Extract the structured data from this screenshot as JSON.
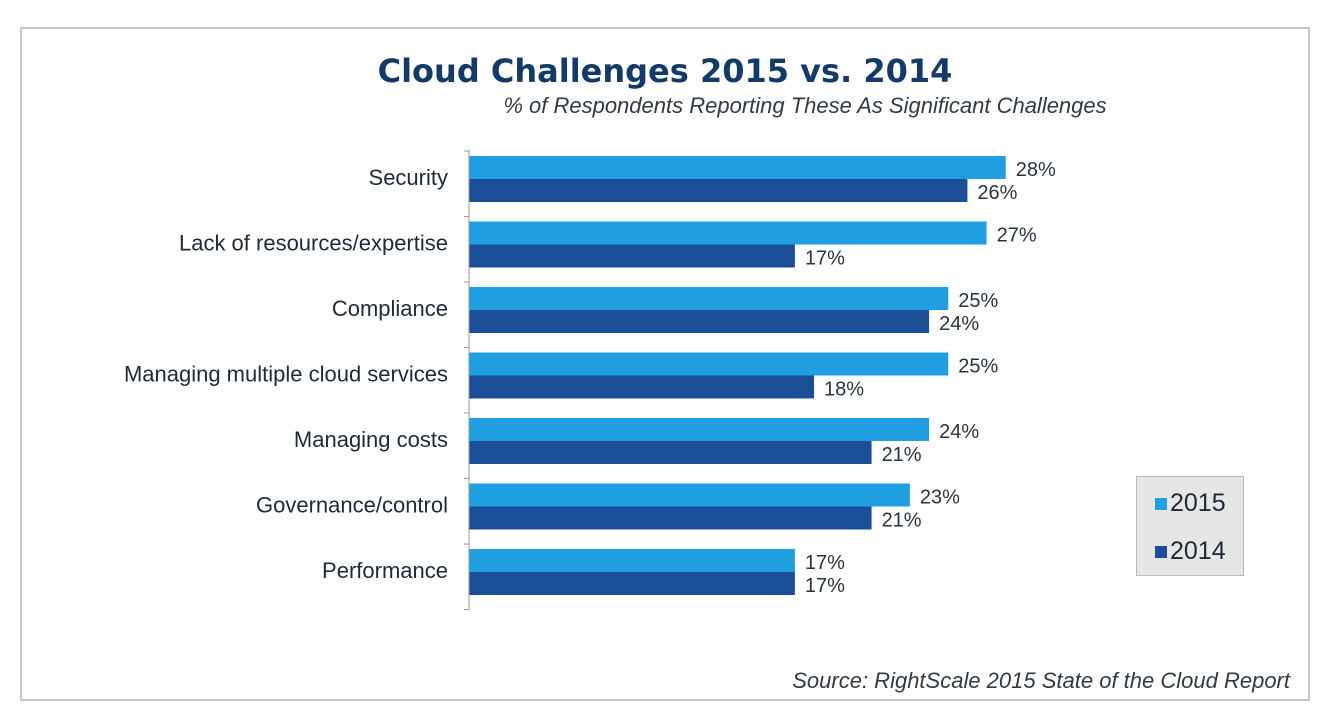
{
  "chart_data": {
    "type": "bar",
    "orientation": "horizontal",
    "title": "Cloud Challenges 2015 vs. 2014",
    "subtitle": "% of Respondents Reporting These As Significant Challenges",
    "categories": [
      "Security",
      "Lack of resources/expertise",
      "Compliance",
      "Managing multiple cloud services",
      "Managing costs",
      "Governance/control",
      "Performance"
    ],
    "series": [
      {
        "name": "2015",
        "color": "#1f9fe0",
        "values": [
          28,
          27,
          25,
          25,
          24,
          23,
          17
        ],
        "labels": [
          "28%",
          "27%",
          "25%",
          "25%",
          "24%",
          "23%",
          "17%"
        ]
      },
      {
        "name": "2014",
        "color": "#1a4f97",
        "values": [
          26,
          17,
          24,
          18,
          21,
          21,
          17
        ],
        "labels": [
          "26%",
          "17%",
          "24%",
          "18%",
          "21%",
          "21%",
          "17%"
        ]
      }
    ],
    "xlim": [
      0,
      35
    ],
    "grid": false,
    "legend_position": "bottom-right",
    "source": "Source: RightScale 2015 State of the Cloud Report"
  }
}
